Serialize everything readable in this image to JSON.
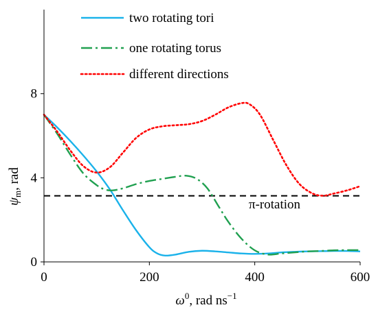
{
  "chart_data": {
    "type": "line",
    "xlabel": "ω⁰, rad ns⁻¹",
    "ylabel": "ψ_m, rad",
    "ylabel_main": "ψ",
    "ylabel_sub": "m",
    "ylabel_tail": ", rad",
    "xlabel_main": "ω",
    "xlabel_sup": "0",
    "xlabel_tail": ", rad ns",
    "xlabel_tail_sup": "−1",
    "xlim": [
      0,
      600
    ],
    "ylim": [
      0,
      12
    ],
    "x_ticks": [
      0,
      200,
      400,
      600
    ],
    "x_tick_labels": [
      "0",
      "200",
      "400",
      "600"
    ],
    "y_ticks": [
      0,
      4,
      8
    ],
    "y_tick_labels": [
      "0",
      "4",
      "8"
    ],
    "grid": false,
    "legend_position": "top-center",
    "series": [
      {
        "name": "two rotating tori",
        "color": "#1ab2ea",
        "style": "solid",
        "x": [
          0,
          25,
          50,
          75,
          100,
          125,
          150,
          175,
          200,
          215,
          230,
          250,
          275,
          300,
          325,
          350,
          375,
          400,
          425,
          450,
          475,
          500,
          525,
          550,
          575,
          600
        ],
        "y": [
          7.0,
          6.4,
          5.75,
          5.05,
          4.3,
          3.45,
          2.45,
          1.5,
          0.7,
          0.4,
          0.3,
          0.35,
          0.48,
          0.53,
          0.5,
          0.45,
          0.4,
          0.38,
          0.4,
          0.45,
          0.48,
          0.5,
          0.51,
          0.52,
          0.52,
          0.5
        ]
      },
      {
        "name": "one rotating torus",
        "color": "#20a050",
        "style": "dashdot",
        "x": [
          0,
          25,
          50,
          75,
          100,
          115,
          130,
          150,
          175,
          200,
          225,
          250,
          270,
          290,
          310,
          330,
          350,
          375,
          400,
          425,
          450,
          475,
          500,
          525,
          550,
          575,
          600
        ],
        "y": [
          7.0,
          6.1,
          5.1,
          4.2,
          3.65,
          3.45,
          3.4,
          3.5,
          3.7,
          3.85,
          3.95,
          4.05,
          4.1,
          3.95,
          3.5,
          2.7,
          1.9,
          1.1,
          0.55,
          0.35,
          0.4,
          0.45,
          0.5,
          0.52,
          0.55,
          0.56,
          0.56
        ]
      },
      {
        "name": "different directions",
        "color": "#ff0000",
        "style": "dotted",
        "x": [
          0,
          25,
          50,
          75,
          100,
          125,
          150,
          175,
          200,
          225,
          250,
          275,
          300,
          325,
          350,
          375,
          390,
          410,
          435,
          460,
          485,
          510,
          530,
          550,
          575,
          600
        ],
        "y": [
          7.0,
          6.2,
          5.3,
          4.55,
          4.25,
          4.5,
          5.2,
          5.9,
          6.3,
          6.45,
          6.5,
          6.55,
          6.7,
          7.0,
          7.35,
          7.55,
          7.5,
          7.0,
          5.8,
          4.6,
          3.7,
          3.25,
          3.15,
          3.25,
          3.4,
          3.6
        ]
      }
    ],
    "reference_line": {
      "y": 3.14159,
      "style": "dashed",
      "color": "#000000",
      "label": "π-rotation"
    }
  }
}
